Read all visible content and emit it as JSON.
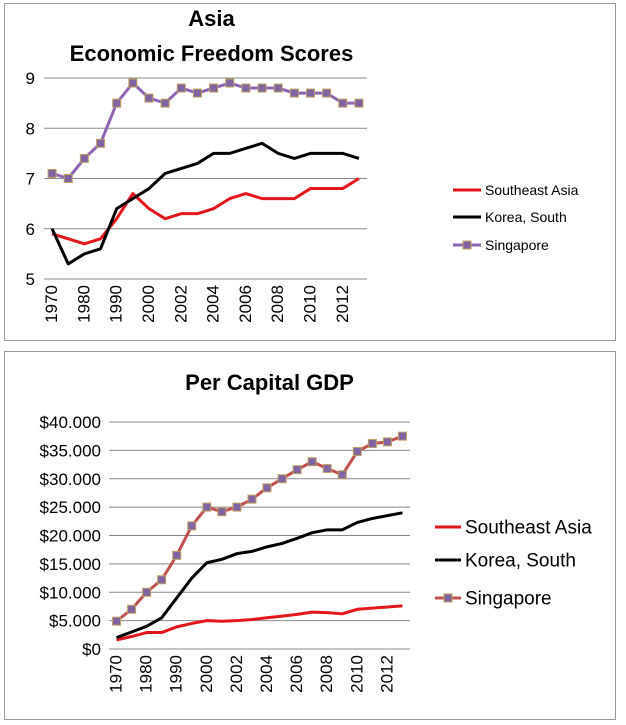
{
  "chart_data": [
    {
      "type": "line",
      "title": "Asia",
      "subtitle": "Economic Freedom Scores",
      "xlabel": "",
      "ylabel": "",
      "ylim": [
        5,
        9
      ],
      "yticks": [
        5,
        6,
        7,
        8,
        9
      ],
      "ytick_labels": [
        "5",
        "6",
        "7",
        "8",
        "9"
      ],
      "x": [
        1970,
        1975,
        1980,
        1985,
        1990,
        1995,
        2000,
        2001,
        2002,
        2003,
        2004,
        2005,
        2006,
        2007,
        2008,
        2009,
        2010,
        2011,
        2012,
        2013
      ],
      "xtick_labels": [
        "1970",
        "1980",
        "1990",
        "2000",
        "2002",
        "2004",
        "2006",
        "2008",
        "2010",
        "2012"
      ],
      "grid": "horizontal",
      "legend_position": "right",
      "series": [
        {
          "name": "Southeast Asia",
          "color": "#e3161b",
          "marker": "none",
          "values": [
            5.9,
            5.8,
            5.7,
            5.8,
            6.2,
            6.7,
            6.4,
            6.2,
            6.3,
            6.3,
            6.4,
            6.6,
            6.7,
            6.6,
            6.6,
            6.6,
            6.8,
            6.8,
            6.8,
            7.0
          ]
        },
        {
          "name": "Korea, South",
          "color": "#000000",
          "marker": "none",
          "values": [
            6.0,
            5.3,
            5.5,
            5.6,
            6.4,
            6.6,
            6.8,
            7.1,
            7.2,
            7.3,
            7.5,
            7.5,
            7.6,
            7.7,
            7.5,
            7.4,
            7.5,
            7.5,
            7.5,
            7.4
          ]
        },
        {
          "name": "Singapore",
          "color": "#8e64b4",
          "marker": "square",
          "values": [
            7.1,
            7.0,
            7.4,
            7.7,
            8.5,
            8.9,
            8.6,
            8.5,
            8.8,
            8.7,
            8.8,
            8.9,
            8.8,
            8.8,
            8.8,
            8.7,
            8.7,
            8.7,
            8.5,
            8.5
          ]
        }
      ]
    },
    {
      "type": "line",
      "title": "Per Capital GDP",
      "xlabel": "",
      "ylabel": "",
      "ylim": [
        0,
        40000
      ],
      "yticks": [
        0,
        5000,
        10000,
        15000,
        20000,
        25000,
        30000,
        35000,
        40000
      ],
      "ytick_labels": [
        "$0",
        "$5.000",
        "$10.000",
        "$15.000",
        "$20.000",
        "$25.000",
        "$30.000",
        "$35.000",
        "$40.000"
      ],
      "x": [
        1970,
        1975,
        1980,
        1985,
        1990,
        1995,
        2000,
        2001,
        2002,
        2003,
        2004,
        2005,
        2006,
        2007,
        2008,
        2009,
        2010,
        2011,
        2012,
        2013
      ],
      "xtick_labels": [
        "1970",
        "1980",
        "1990",
        "2000",
        "2002",
        "2004",
        "2006",
        "2008",
        "2010",
        "2012"
      ],
      "grid": "horizontal",
      "legend_position": "right",
      "series": [
        {
          "name": "Southeast Asia",
          "color": "#e3161b",
          "marker": "none",
          "values": [
            1600,
            2200,
            2900,
            2900,
            3900,
            4500,
            5000,
            4900,
            5000,
            5200,
            5500,
            5800,
            6100,
            6500,
            6400,
            6200,
            7000,
            7200,
            7400,
            7600
          ]
        },
        {
          "name": "Korea, South",
          "color": "#000000",
          "marker": "none",
          "values": [
            2000,
            3000,
            4000,
            5500,
            9000,
            12500,
            15200,
            15800,
            16800,
            17200,
            18000,
            18600,
            19500,
            20500,
            21000,
            21000,
            22300,
            23000,
            23500,
            24000
          ]
        },
        {
          "name": "Singapore",
          "color": "#c0504d",
          "marker": "square",
          "marker_color": "#8064a2",
          "values": [
            4900,
            7000,
            10000,
            12200,
            16500,
            21700,
            25000,
            24200,
            25000,
            26400,
            28400,
            30000,
            31600,
            33000,
            31800,
            30700,
            34800,
            36200,
            36500,
            37500
          ]
        }
      ]
    }
  ]
}
